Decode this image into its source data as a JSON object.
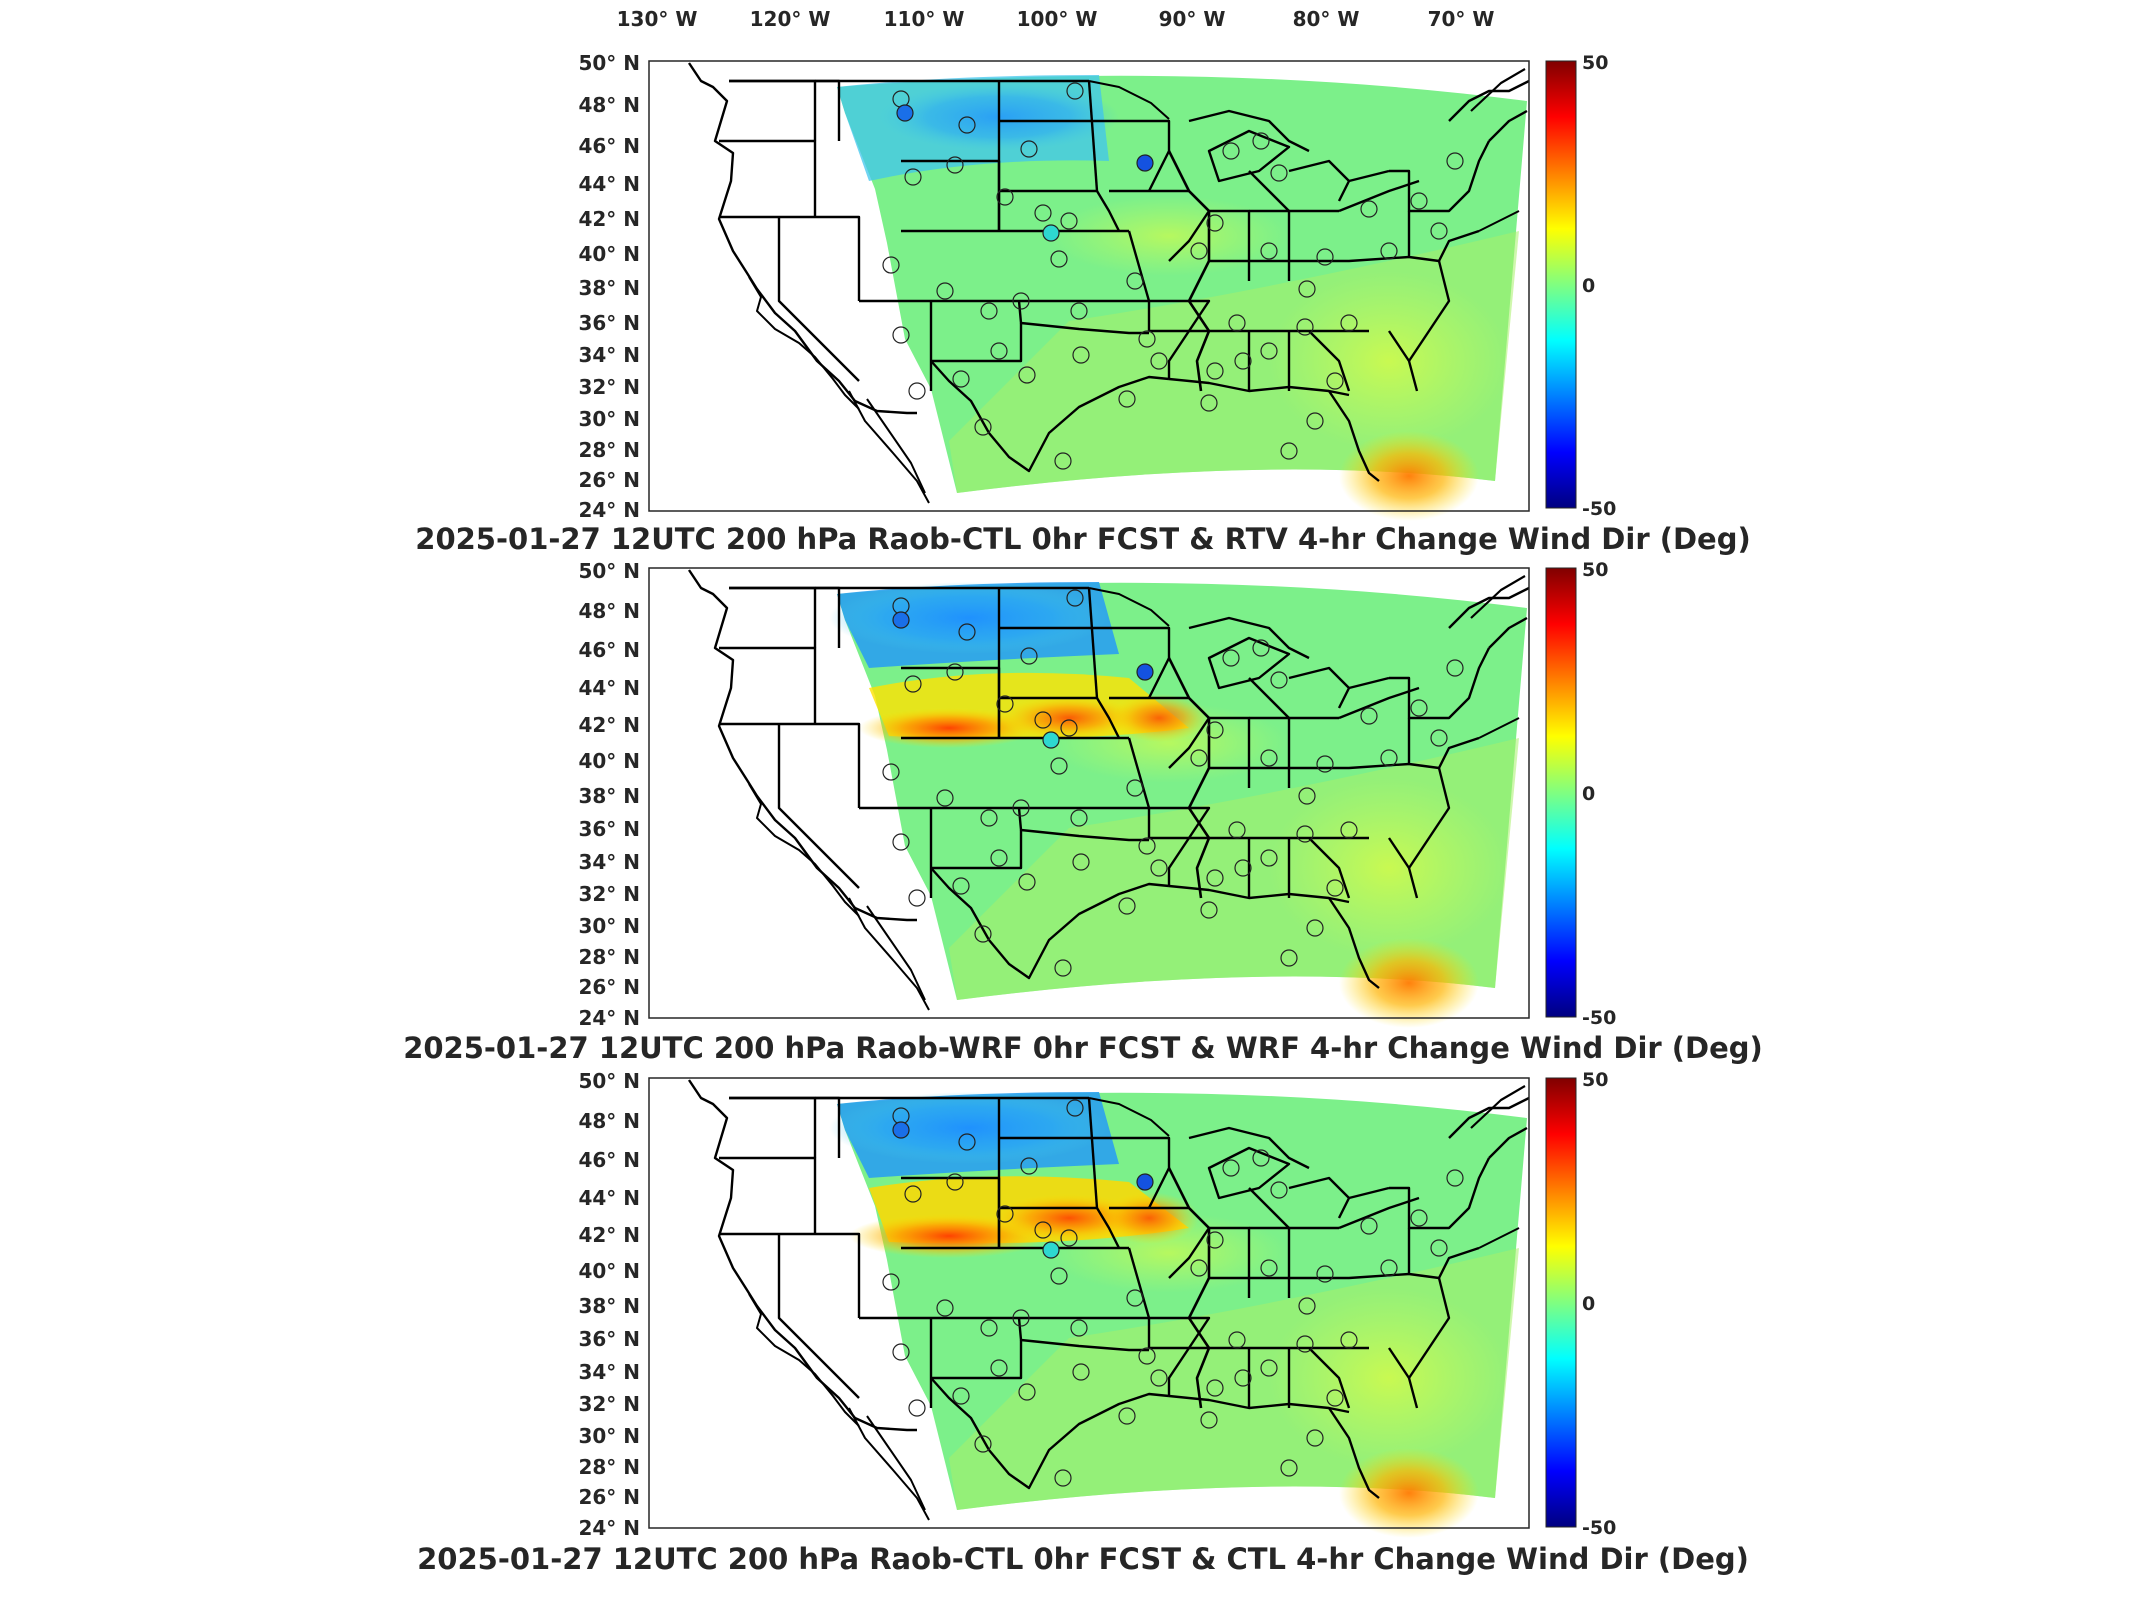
{
  "figure": {
    "longitude_labels": [
      "130° W",
      "120° W",
      "110° W",
      "100° W",
      "90° W",
      "80° W",
      "70° W"
    ],
    "latitude_labels": [
      "50° N",
      "48° N",
      "46° N",
      "44° N",
      "42° N",
      "40° N",
      "38° N",
      "36° N",
      "34° N",
      "32° N",
      "30° N",
      "28° N",
      "26° N",
      "24° N"
    ],
    "colormap": "jet",
    "panels": [
      {
        "title": "2025-01-27 12UTC 200 hPa Raob-CTL 0hr FCST & RTV 4-hr Change Wind Dir (Deg)",
        "colorbar": {
          "max_label": "50",
          "mid_label": "0",
          "min_label": "-50"
        },
        "blue_band": "weak",
        "red_plains": false
      },
      {
        "title": "2025-01-27 12UTC 200 hPa Raob-WRF 0hr FCST & WRF 4-hr Change Wind Dir (Deg)",
        "colorbar": {
          "max_label": "50",
          "mid_label": "0",
          "min_label": "-50"
        },
        "blue_band": "strong",
        "red_plains": true
      },
      {
        "title": "2025-01-27 12UTC 200 hPa Raob-CTL 0hr FCST & CTL 4-hr Change Wind Dir (Deg)",
        "colorbar": {
          "max_label": "50",
          "mid_label": "0",
          "min_label": "-50"
        },
        "blue_band": "strong",
        "red_plains": true
      }
    ]
  }
}
